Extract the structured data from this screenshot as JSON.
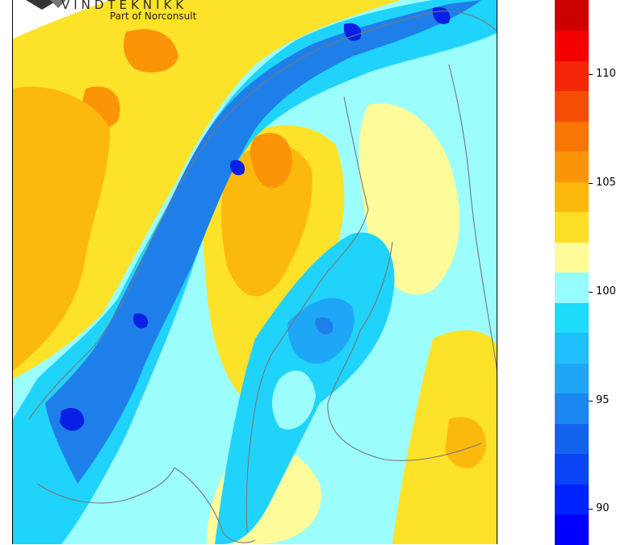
{
  "logo": {
    "brand": "VINDTEKNIKK",
    "subtitle": "Part of Norconsult"
  },
  "colorbar": {
    "ticks": [
      "110",
      "105",
      "100",
      "95",
      "90"
    ],
    "colors": [
      "#0000ff",
      "#0022ff",
      "#0b44f5",
      "#1262ee",
      "#1a86f0",
      "#1fa7f7",
      "#1ec0fb",
      "#1ddcfc",
      "#97fcff",
      "#fefb98",
      "#fde025",
      "#fcb80d",
      "#fb9507",
      "#f97504",
      "#f64d05",
      "#f42607",
      "#f50000",
      "#cc0000"
    ]
  },
  "map": {
    "colors": {
      "deep_blue": "#0a1fe6",
      "blue": "#1f7fea",
      "mid_blue": "#1fa7f7",
      "cyan": "#20d3fb",
      "light_cyan": "#9cfdfd",
      "light_yellow": "#fefb9a",
      "yellow": "#fde22a",
      "orange_yellow": "#fcb90d",
      "orange": "#fb9507",
      "coastline": "#777777"
    }
  }
}
